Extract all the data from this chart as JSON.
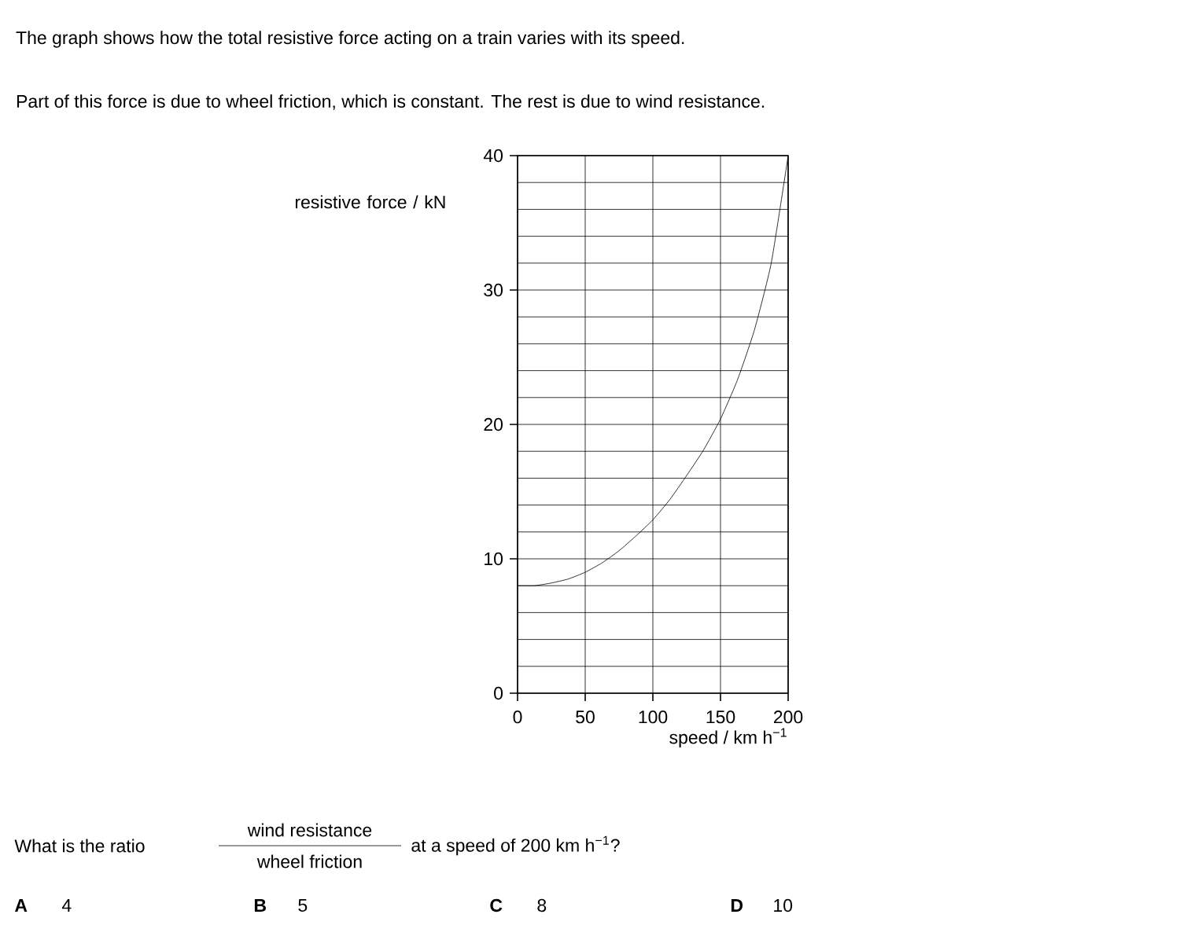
{
  "chart_data": {
    "type": "line",
    "title": "The graph shows how the total resistive force acting on a train varies with its speed.",
    "subtitle": "Part of this force is due to wheel friction, which is constant. The rest is due to wind resistance.",
    "xlabel": "speed / km h$^{−1}$",
    "ylabel": "resistive force / kN",
    "x": [
      0,
      12.5,
      25,
      37.5,
      50,
      62.5,
      75,
      87.5,
      100,
      112.5,
      125,
      137.5,
      150,
      162.5,
      175,
      187.5,
      200
    ],
    "values": [
      8,
      8,
      8.2,
      8.5,
      9,
      9.7,
      10.6,
      11.7,
      12.9,
      14.4,
      16.2,
      18.1,
      20.4,
      23.3,
      27,
      32,
      40
    ],
    "color": "#000000",
    "line_style": "solid",
    "xlim": [
      0,
      200
    ],
    "ylim": [
      0,
      40
    ],
    "xticks": [
      0,
      50,
      100,
      150,
      200
    ],
    "yticks": [
      0,
      {
        "value": 2,
        "label": null
      },
      {
        "value": 4,
        "label": null
      },
      {
        "value": 6,
        "label": null
      },
      {
        "value": 8,
        "label": null
      },
      10,
      {
        "value": 12,
        "label": null
      },
      {
        "value": 14,
        "label": null
      },
      {
        "value": 16,
        "label": null
      },
      {
        "value": 18,
        "label": null
      },
      20,
      {
        "value": 22,
        "label": null
      },
      {
        "value": 24,
        "label": null
      },
      {
        "value": 26,
        "label": null
      },
      {
        "value": 28,
        "label": null
      },
      30,
      {
        "value": 32,
        "label": null
      },
      {
        "value": 34,
        "label": null
      },
      {
        "value": 36,
        "label": null
      },
      {
        "value": 38,
        "label": null
      },
      40
    ],
    "grid": true,
    "annotations": [
      "What is the ratio",
      "wind resistance",
      "wheel friction",
      "at a speed of 200 km h$^{−1}$?",
      "**A**",
      "4",
      "**B**",
      "5",
      "**C**",
      "8",
      "**D**",
      "10"
    ]
  }
}
